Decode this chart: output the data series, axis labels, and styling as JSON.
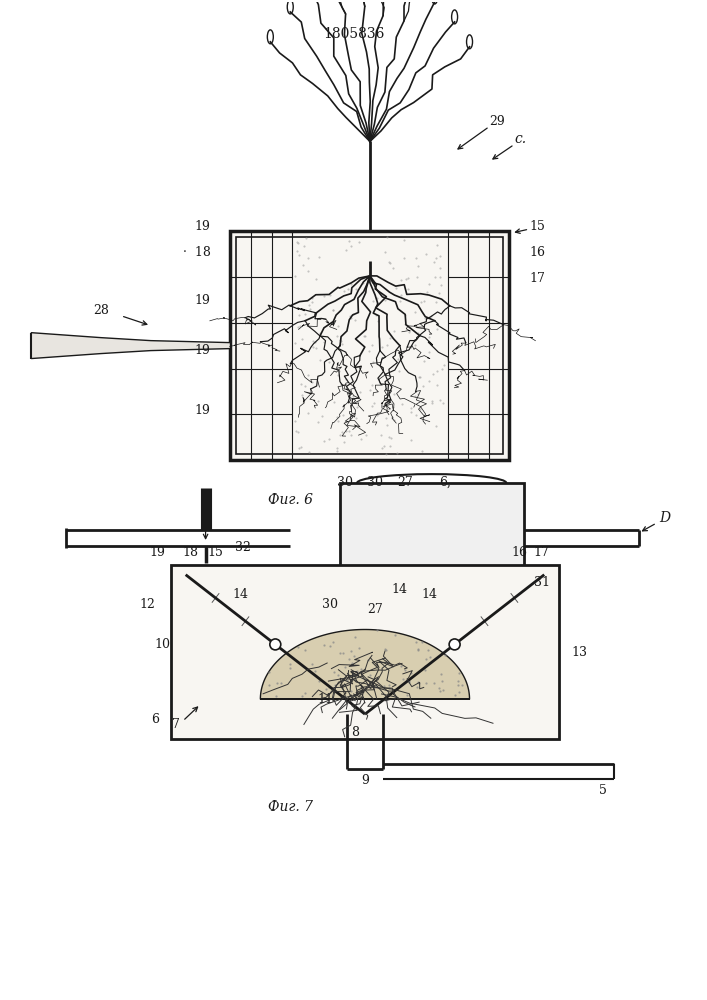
{
  "patent_number": "1805836",
  "bg_color": "#ffffff",
  "line_color": "#1a1a1a",
  "labels": {
    "patent": "1805836",
    "fig6": "Фиг. 6",
    "fig7": "Фиг. 7"
  }
}
